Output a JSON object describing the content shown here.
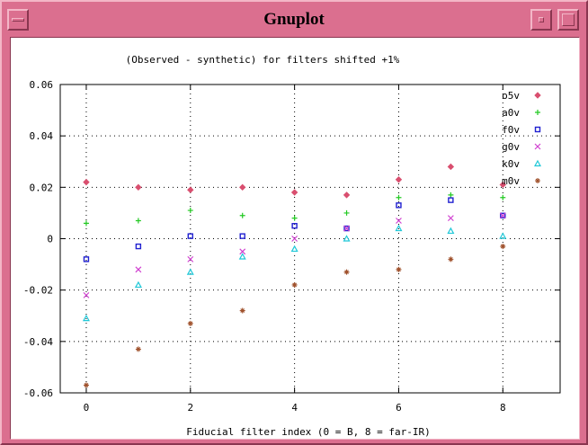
{
  "window": {
    "title": "Gnuplot",
    "frame_color": "#db6f8f"
  },
  "chart_data": {
    "type": "scatter",
    "title": "(Observed - synthetic) for filters shifted +1%",
    "xlabel": "Fiducial filter index (0 = B, 8 = far-IR)",
    "ylabel": "",
    "xlim": [
      -0.5,
      9.1
    ],
    "ylim": [
      -0.06,
      0.06
    ],
    "xticks": [
      0,
      2,
      4,
      6,
      8
    ],
    "xtick_labels": [
      "0",
      "2",
      "4",
      "6",
      "8"
    ],
    "yticks": [
      -0.06,
      -0.04,
      -0.02,
      0,
      0.02,
      0.04,
      0.06
    ],
    "ytick_labels": [
      "-0.06",
      "-0.04",
      "-0.02",
      "0",
      "0.02",
      "0.04",
      "0.06"
    ],
    "grid": true,
    "legend_position": "top-right",
    "x": [
      0,
      1,
      2,
      3,
      4,
      5,
      6,
      7,
      8
    ],
    "series": [
      {
        "name": "o5v",
        "color": "#d94f6f",
        "marker": "diamond",
        "values": [
          0.022,
          0.02,
          0.019,
          0.02,
          0.018,
          0.017,
          0.023,
          0.028,
          0.021
        ]
      },
      {
        "name": "a0v",
        "color": "#22c922",
        "marker": "plus",
        "values": [
          0.006,
          0.007,
          0.011,
          0.009,
          0.008,
          0.01,
          0.016,
          0.017,
          0.016
        ]
      },
      {
        "name": "f0v",
        "color": "#2020d0",
        "marker": "square",
        "values": [
          -0.008,
          -0.003,
          0.001,
          0.001,
          0.005,
          0.004,
          0.013,
          0.015,
          0.009
        ]
      },
      {
        "name": "g0v",
        "color": "#d040d0",
        "marker": "cross",
        "values": [
          -0.022,
          -0.012,
          -0.008,
          -0.005,
          0.0,
          0.004,
          0.007,
          0.008,
          0.009
        ]
      },
      {
        "name": "k0v",
        "color": "#20c8d8",
        "marker": "triangle",
        "values": [
          -0.031,
          -0.018,
          -0.013,
          -0.007,
          -0.004,
          0.0,
          0.004,
          0.003,
          0.001
        ]
      },
      {
        "name": "m0v",
        "color": "#a0522d",
        "marker": "star",
        "values": [
          -0.057,
          -0.043,
          -0.033,
          -0.028,
          -0.018,
          -0.013,
          -0.012,
          -0.008,
          -0.003
        ]
      }
    ]
  }
}
